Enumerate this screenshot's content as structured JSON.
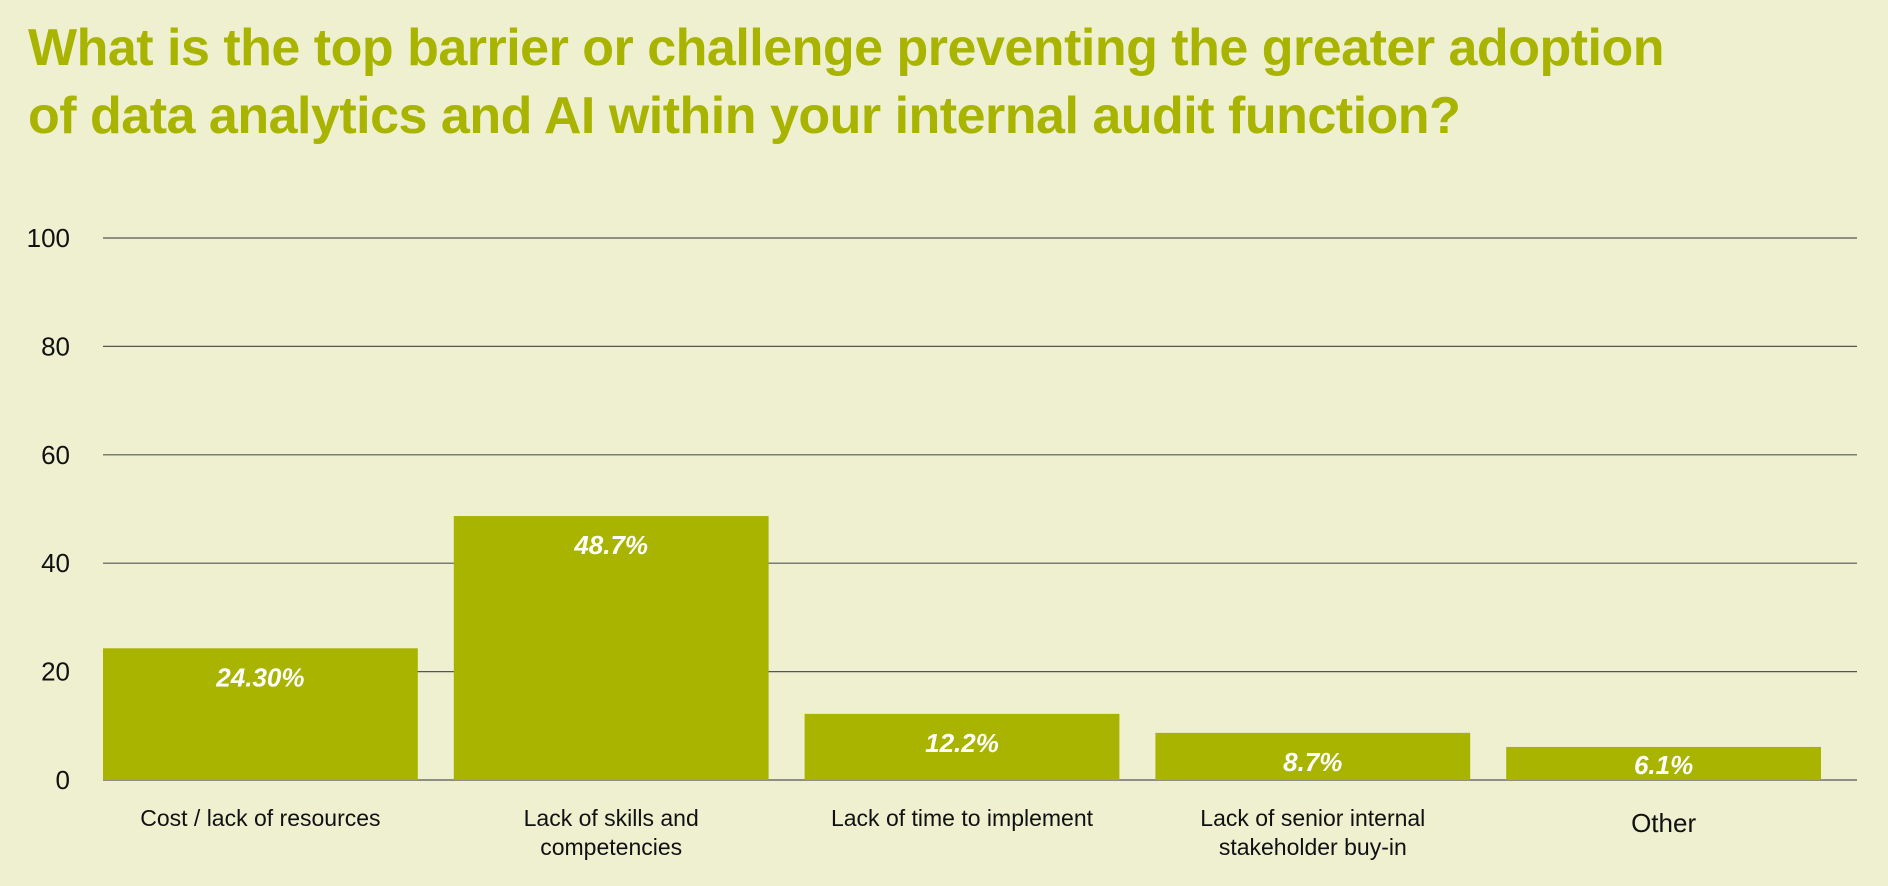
{
  "colors": {
    "background": "#eef0cf",
    "accent": "#a8b400",
    "gridline": "#555555",
    "data_label": "#ffffff"
  },
  "chart_data": {
    "type": "bar",
    "title_lines": [
      "What is the top barrier or challenge preventing the greater adoption",
      "of data analytics and AI within your internal audit function?"
    ],
    "categories": [
      [
        "Cost / lack of resources"
      ],
      [
        "Lack of skills and",
        "competencies"
      ],
      [
        "Lack of time to implement"
      ],
      [
        "Lack of senior internal",
        "stakeholder buy-in"
      ],
      [
        "Other"
      ]
    ],
    "values": [
      24.3,
      48.7,
      12.2,
      8.7,
      6.1
    ],
    "data_labels": [
      "24.30%",
      "48.7%",
      "12.2%",
      "8.7%",
      "6.1%"
    ],
    "ylim": [
      0,
      100
    ],
    "yticks": [
      "0",
      "20",
      "40",
      "60",
      "80",
      "100"
    ],
    "grid": true,
    "legend": "none"
  }
}
